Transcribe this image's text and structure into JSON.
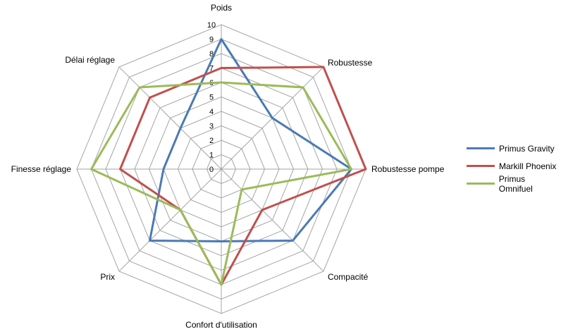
{
  "chart_data": {
    "type": "radar",
    "categories": [
      "Poids",
      "Robustesse",
      "Robustesse pompe",
      "Compacité",
      "Confort d'utilisation",
      "Prix",
      "Finesse réglage",
      "Délai réglage"
    ],
    "scale": {
      "min": 0,
      "max": 10,
      "step": 1,
      "ticks": [
        "0",
        "1",
        "2",
        "3",
        "4",
        "5",
        "6",
        "7",
        "8",
        "9",
        "10"
      ]
    },
    "grid": true,
    "legend_position": "right",
    "series": [
      {
        "name": "Primus Gravity",
        "color": "#4a7ab5",
        "values": [
          9,
          5,
          9,
          7,
          5,
          7,
          4,
          4
        ]
      },
      {
        "name": "Markill Phoenix",
        "color": "#c0504d",
        "values": [
          7,
          10,
          10,
          4,
          8,
          4,
          7,
          7
        ]
      },
      {
        "name": "Primus Omnifuel",
        "color": "#9bbb59",
        "values": [
          6,
          8,
          9,
          2,
          8,
          4,
          9,
          8
        ]
      }
    ]
  }
}
